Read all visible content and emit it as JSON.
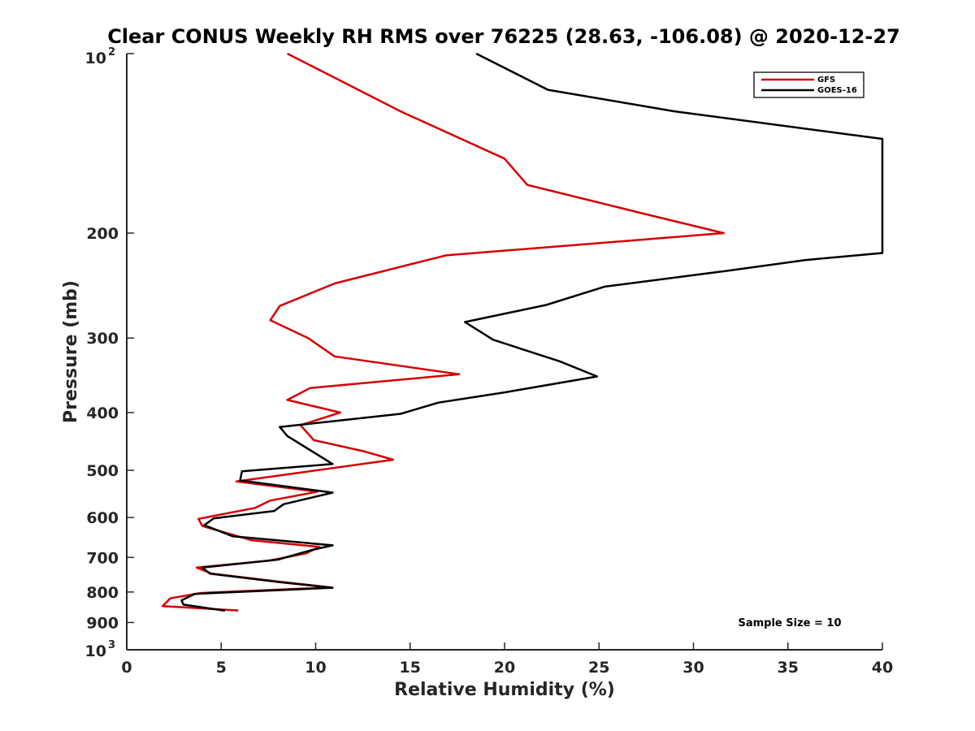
{
  "chart_data": {
    "type": "line",
    "title": "Clear CONUS Weekly RH RMS over 76225 (28.63, -106.08) @ 2020-12-27",
    "xlabel": "Relative Humidity (%)",
    "ylabel": "Pressure (mb)",
    "xlim": [
      0,
      40
    ],
    "ylim": [
      100,
      1000
    ],
    "yscale": "log",
    "yaxis_reversed": true,
    "grid": false,
    "legend_position": "top-right",
    "x_ticks": [
      0,
      5,
      10,
      15,
      20,
      25,
      30,
      35,
      40
    ],
    "y_ticks": [
      {
        "value": 100,
        "label": "10",
        "exp": "2"
      },
      {
        "value": 200,
        "label": "200",
        "exp": ""
      },
      {
        "value": 300,
        "label": "300",
        "exp": ""
      },
      {
        "value": 400,
        "label": "400",
        "exp": ""
      },
      {
        "value": 500,
        "label": "500",
        "exp": ""
      },
      {
        "value": 600,
        "label": "600",
        "exp": ""
      },
      {
        "value": 700,
        "label": "700",
        "exp": ""
      },
      {
        "value": 800,
        "label": "800",
        "exp": ""
      },
      {
        "value": 900,
        "label": "900",
        "exp": ""
      },
      {
        "value": 1000,
        "label": "10",
        "exp": "3"
      }
    ],
    "series": [
      {
        "name": "GFS",
        "color": "#d40000",
        "points": [
          [
            8.5,
            100
          ],
          [
            14.5,
            125
          ],
          [
            20.0,
            150
          ],
          [
            21.2,
            166
          ],
          [
            27.2,
            185
          ],
          [
            31.6,
            200
          ],
          [
            16.9,
            218
          ],
          [
            11.0,
            243
          ],
          [
            8.1,
            265
          ],
          [
            7.6,
            280
          ],
          [
            9.6,
            300
          ],
          [
            11.0,
            322
          ],
          [
            17.6,
            345
          ],
          [
            9.7,
            364
          ],
          [
            8.5,
            381
          ],
          [
            11.3,
            400
          ],
          [
            9.2,
            420
          ],
          [
            9.9,
            445
          ],
          [
            12.6,
            465
          ],
          [
            14.1,
            480
          ],
          [
            5.8,
            522
          ],
          [
            10.1,
            543
          ],
          [
            7.6,
            562
          ],
          [
            6.8,
            578
          ],
          [
            3.8,
            603
          ],
          [
            4.0,
            620
          ],
          [
            6.6,
            655
          ],
          [
            10.2,
            672
          ],
          [
            9.5,
            689
          ],
          [
            7.5,
            709
          ],
          [
            3.7,
            728
          ],
          [
            4.5,
            745
          ],
          [
            8.3,
            770
          ],
          [
            10.8,
            786
          ],
          [
            3.9,
            803
          ],
          [
            2.3,
            820
          ],
          [
            1.9,
            845
          ],
          [
            5.9,
            859
          ]
        ]
      },
      {
        "name": "GOES-16",
        "color": "#000000",
        "points": [
          [
            18.5,
            100
          ],
          [
            22.3,
            115
          ],
          [
            29.0,
            125
          ],
          [
            40.0,
            139
          ],
          [
            40.0,
            216
          ],
          [
            35.9,
            222
          ],
          [
            31.5,
            232
          ],
          [
            25.3,
            246
          ],
          [
            22.2,
            264
          ],
          [
            17.9,
            282
          ],
          [
            19.4,
            302
          ],
          [
            22.9,
            328
          ],
          [
            24.9,
            348
          ],
          [
            20.0,
            370
          ],
          [
            16.5,
            385
          ],
          [
            14.5,
            402
          ],
          [
            8.1,
            423
          ],
          [
            8.5,
            438
          ],
          [
            10.9,
            488
          ],
          [
            6.1,
            502
          ],
          [
            6.0,
            520
          ],
          [
            10.9,
            545
          ],
          [
            8.3,
            570
          ],
          [
            7.8,
            585
          ],
          [
            4.6,
            602
          ],
          [
            4.1,
            618
          ],
          [
            5.6,
            645
          ],
          [
            10.9,
            668
          ],
          [
            9.8,
            680
          ],
          [
            8.0,
            706
          ],
          [
            4.0,
            728
          ],
          [
            4.4,
            745
          ],
          [
            8.1,
            770
          ],
          [
            10.9,
            787
          ],
          [
            3.6,
            806
          ],
          [
            2.9,
            826
          ],
          [
            3.0,
            840
          ],
          [
            5.2,
            860
          ]
        ]
      }
    ],
    "annotation": "Sample Size = 10"
  }
}
